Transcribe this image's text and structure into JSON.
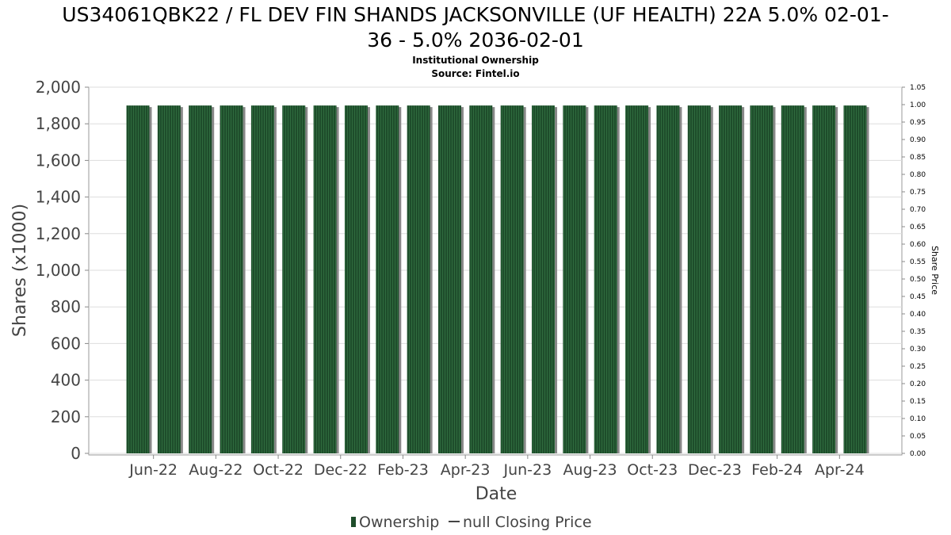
{
  "chart_data": {
    "type": "bar",
    "title_line1": "US34061QBK22 / FL DEV FIN SHANDS JACKSONVILLE (UF HEALTH) 22A 5.0% 02-01-",
    "title_line2": "36 - 5.0% 2036-02-01",
    "subtitle1": "Institutional Ownership",
    "subtitle2": "Source: Fintel.io",
    "xlabel": "Date",
    "ylabel": "Shares (x1000)",
    "y2label": "Share Price",
    "ylim": [
      0,
      2000
    ],
    "y_ticks": [
      "0",
      "200",
      "400",
      "600",
      "800",
      "1,000",
      "1,200",
      "1,400",
      "1,600",
      "1,800",
      "2,000"
    ],
    "y2lim": [
      0,
      1.05
    ],
    "y2_ticks": [
      "0.00",
      "0.05",
      "0.10",
      "0.15",
      "0.20",
      "0.25",
      "0.30",
      "0.35",
      "0.40",
      "0.45",
      "0.50",
      "0.55",
      "0.60",
      "0.65",
      "0.70",
      "0.75",
      "0.80",
      "0.85",
      "0.90",
      "0.95",
      "1.00",
      "1.05"
    ],
    "x_tick_labels": [
      "Jun-22",
      "Aug-22",
      "Oct-22",
      "Dec-22",
      "Feb-23",
      "Apr-23",
      "Jun-23",
      "Aug-23",
      "Oct-23",
      "Dec-23",
      "Feb-24",
      "Apr-24"
    ],
    "series": [
      {
        "name": "Ownership",
        "values": [
          1900,
          1900,
          1900,
          1900,
          1900,
          1900,
          1900,
          1900,
          1900,
          1900,
          1900,
          1900,
          1900,
          1900,
          1900,
          1900,
          1900,
          1900,
          1900,
          1900,
          1900,
          1900,
          1900,
          1900
        ]
      }
    ],
    "legend": [
      {
        "label": "Ownership",
        "kind": "bar"
      },
      {
        "label": "null Closing Price",
        "kind": "line"
      }
    ],
    "legend_position": "bottom-center",
    "grid": true,
    "colors": {
      "bar": "#1e4d2b",
      "bar_stripe": "#2f6b3e",
      "bar_shadow": "#888888",
      "grid": "#dddddd",
      "axis_text": "#444444"
    }
  }
}
